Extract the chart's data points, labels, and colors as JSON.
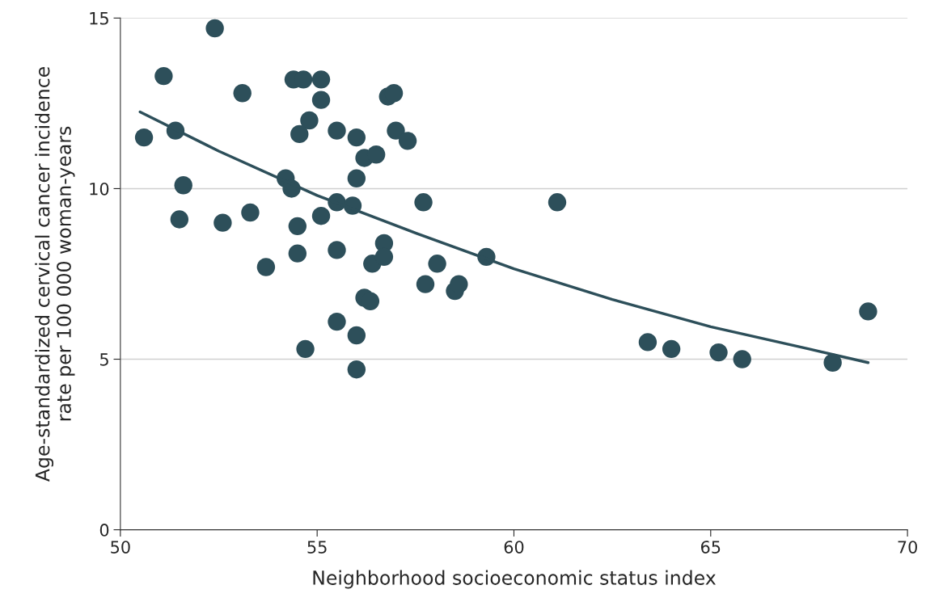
{
  "chart_data": {
    "type": "scatter",
    "xlabel": "Neighborhood socioeconomic status index",
    "ylabel": "Age-standardized cervical cancer incidence\nrate per 100 000 woman-years",
    "xlim": [
      50,
      70
    ],
    "xticks": [
      50,
      55,
      60,
      65,
      70
    ],
    "ylim": [
      0,
      15
    ],
    "yticks": [
      0,
      5,
      10,
      15
    ],
    "grid": "y",
    "series": [
      {
        "marker": "circle",
        "color": "#2d4f5a",
        "x": [
          50.6,
          51.1,
          51.4,
          51.6,
          51.5,
          52.4,
          52.6,
          53.1,
          53.3,
          53.7,
          54.2,
          54.35,
          54.4,
          54.65,
          55.1,
          55.1,
          54.8,
          54.55,
          54.5,
          54.5,
          54.7,
          55.1,
          55.5,
          55.5,
          55.5,
          55.5,
          55.9,
          56.0,
          56.0,
          56.0,
          56.0,
          56.2,
          56.5,
          56.2,
          56.35,
          56.4,
          56.7,
          56.7,
          56.8,
          56.95,
          57.0,
          57.3,
          57.7,
          57.75,
          58.05,
          58.5,
          58.6,
          59.3,
          61.1,
          63.4,
          64.0,
          65.2,
          65.8,
          68.1,
          69.0
        ],
        "values": [
          11.5,
          13.3,
          11.7,
          10.1,
          9.1,
          14.7,
          9.0,
          12.8,
          9.3,
          7.7,
          10.3,
          10.0,
          13.2,
          13.2,
          13.2,
          12.6,
          12.0,
          11.6,
          8.9,
          8.1,
          5.3,
          9.2,
          11.7,
          9.6,
          8.2,
          6.1,
          9.5,
          11.5,
          10.3,
          5.7,
          4.7,
          10.9,
          11.0,
          6.8,
          6.7,
          7.8,
          8.4,
          8.0,
          12.7,
          12.8,
          11.7,
          11.4,
          9.6,
          7.2,
          7.8,
          7.0,
          7.2,
          8.0,
          9.6,
          5.5,
          5.3,
          5.2,
          5.0,
          4.9,
          6.4
        ]
      },
      {
        "type": "line",
        "color": "#2d4f5a",
        "x": [
          50.5,
          52.5,
          55,
          57.5,
          60,
          62.5,
          65,
          67.5,
          69
        ],
        "values": [
          12.25,
          11.1,
          9.8,
          8.7,
          7.65,
          6.75,
          5.95,
          5.3,
          4.9
        ]
      }
    ]
  }
}
